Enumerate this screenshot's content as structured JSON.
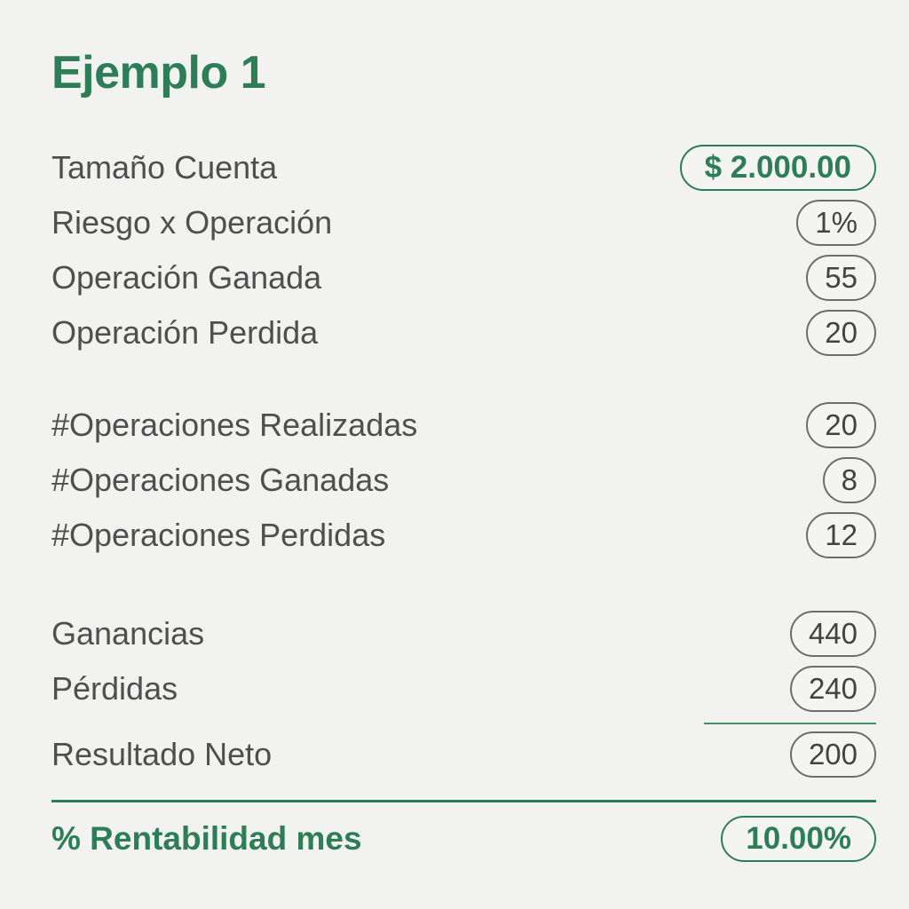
{
  "title": "Ejemplo 1",
  "colors": {
    "accent_green": "#2d7d57",
    "text_gray": "#4f4f4f",
    "pill_border_gray": "#6d6d6d",
    "background": "#f2f2f1"
  },
  "rows": [
    {
      "label": "Tamaño Cuenta",
      "value": "$ 2.000.00"
    },
    {
      "label": "Riesgo x Operación",
      "value": "1%"
    },
    {
      "label": "Operación Ganada",
      "value": "55"
    },
    {
      "label": "Operación Perdida",
      "value": "20"
    },
    {
      "label": "#Operaciones Realizadas",
      "value": "20"
    },
    {
      "label": "#Operaciones Ganadas",
      "value": "8"
    },
    {
      "label": "#Operaciones Perdidas",
      "value": "12"
    },
    {
      "label": "Ganancias",
      "value": "440"
    },
    {
      "label": "Pérdidas",
      "value": "240"
    },
    {
      "label": "Resultado Neto",
      "value": "200"
    },
    {
      "label": "% Rentabilidad mes",
      "value": "10.00%"
    }
  ]
}
